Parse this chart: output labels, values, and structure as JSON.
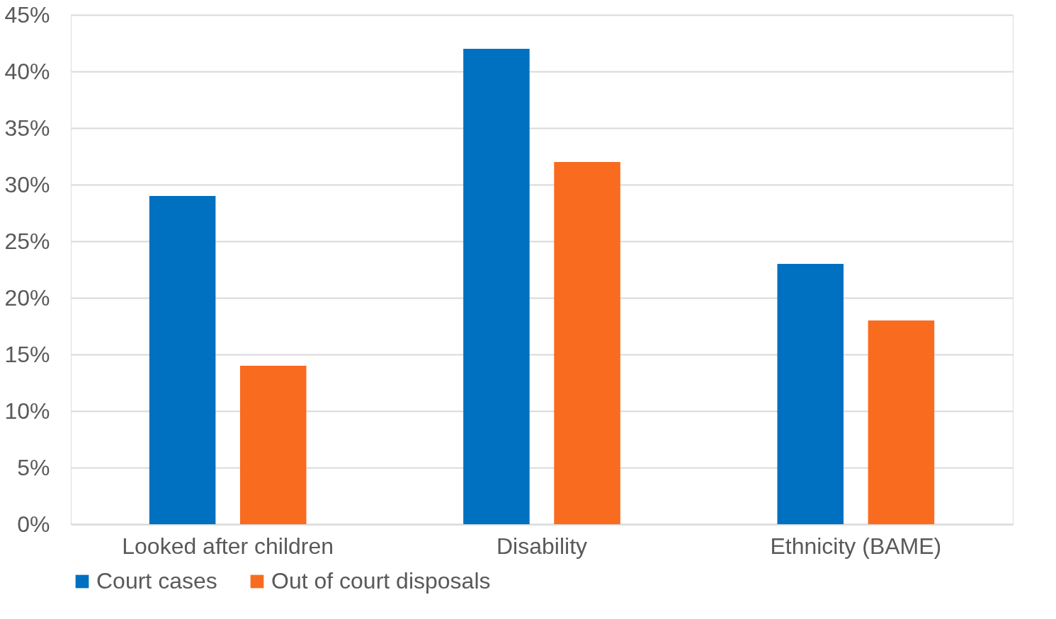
{
  "chart_data": {
    "type": "bar",
    "categories": [
      "Looked after children",
      "Disability",
      "Ethnicity (BAME)"
    ],
    "series": [
      {
        "name": "Court cases",
        "color": "#0070c0",
        "values": [
          29,
          42,
          23
        ]
      },
      {
        "name": "Out of court disposals",
        "color": "#f96b1e",
        "values": [
          14,
          32,
          18
        ]
      }
    ],
    "ylim": [
      0,
      45
    ],
    "yticks": [
      {
        "value": 0,
        "label": "0%"
      },
      {
        "value": 5,
        "label": "5%"
      },
      {
        "value": 10,
        "label": "10%"
      },
      {
        "value": 15,
        "label": "15%"
      },
      {
        "value": 20,
        "label": "20%"
      },
      {
        "value": 25,
        "label": "25%"
      },
      {
        "value": 30,
        "label": "30%"
      },
      {
        "value": 35,
        "label": "35%"
      },
      {
        "value": 40,
        "label": "40%"
      },
      {
        "value": 45,
        "label": "45%"
      }
    ],
    "grid": "y",
    "legend": "bottom"
  }
}
